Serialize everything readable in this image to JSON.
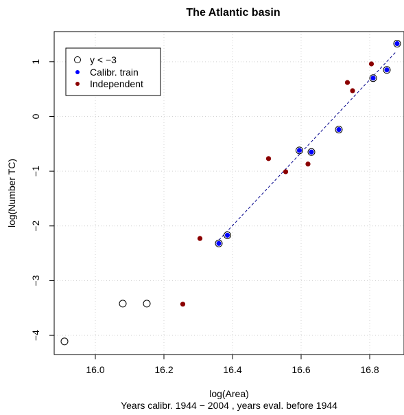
{
  "chart_data": {
    "type": "scatter",
    "title": "The Atlantic basin",
    "xlabel": "log(Area)",
    "ylabel": "log(Number TC)",
    "caption": "Years calibr. 1944 − 2004 , years eval. before 1944",
    "xlim": [
      15.88,
      16.9
    ],
    "ylim": [
      -4.35,
      1.55
    ],
    "x_ticks": [
      16.0,
      16.2,
      16.4,
      16.6,
      16.8
    ],
    "x_tick_labels": [
      "16.0",
      "16.2",
      "16.4",
      "16.6",
      "16.8"
    ],
    "y_ticks": [
      -4,
      -3,
      -2,
      -1,
      0,
      1
    ],
    "y_tick_labels": [
      "−4",
      "−3",
      "−2",
      "−1",
      "0",
      "1"
    ],
    "grid": true,
    "legend_position": "top-left",
    "series": [
      {
        "name": "y < −3",
        "marker": "open-circle",
        "color": "#000000",
        "points": [
          [
            15.91,
            -4.11
          ],
          [
            16.08,
            -3.42
          ],
          [
            16.15,
            -3.42
          ]
        ]
      },
      {
        "name": "Calibr. train",
        "marker": "filled-circle-ring",
        "color": "#0000ff",
        "points": [
          [
            16.36,
            -2.32
          ],
          [
            16.385,
            -2.17
          ],
          [
            16.595,
            -0.62
          ],
          [
            16.63,
            -0.65
          ],
          [
            16.71,
            -0.24
          ],
          [
            16.81,
            0.7
          ],
          [
            16.85,
            0.85
          ],
          [
            16.88,
            1.33
          ]
        ]
      },
      {
        "name": "Independent",
        "marker": "filled-circle",
        "color": "#8b0000",
        "points": [
          [
            16.255,
            -3.43
          ],
          [
            16.305,
            -2.23
          ],
          [
            16.505,
            -0.77
          ],
          [
            16.555,
            -1.01
          ],
          [
            16.62,
            -0.87
          ],
          [
            16.735,
            0.62
          ],
          [
            16.75,
            0.47
          ],
          [
            16.805,
            0.96
          ]
        ]
      }
    ],
    "fit_line": {
      "style": "dashed",
      "color": "#00008b",
      "from": [
        16.36,
        -2.26
      ],
      "to": [
        16.875,
        1.17
      ]
    }
  }
}
